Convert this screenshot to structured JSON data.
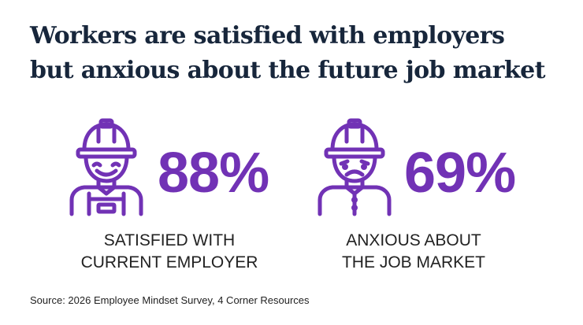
{
  "title": {
    "line1": "Workers are satisfied with employers",
    "line2": "but anxious about the future job market"
  },
  "accent_color": "#7132b5",
  "stats": [
    {
      "icon": "happy-worker-icon",
      "value": "88%",
      "caption_line1": "SATISFIED WITH",
      "caption_line2": "CURRENT EMPLOYER"
    },
    {
      "icon": "worried-worker-icon",
      "value": "69%",
      "caption_line1": "ANXIOUS ABOUT",
      "caption_line2": "THE JOB MARKET"
    }
  ],
  "source": "Source: 2026 Employee Mindset Survey, 4 Corner Resources"
}
